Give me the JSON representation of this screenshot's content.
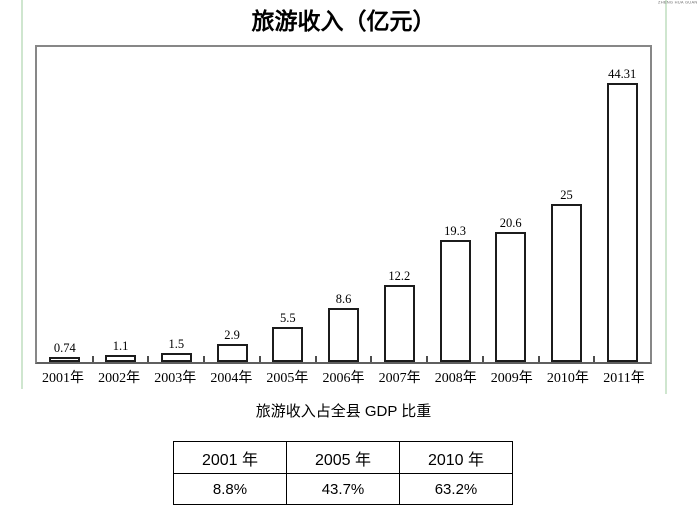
{
  "page": {
    "watermark_top_right": "ZHENG HUA GUAN",
    "background": "#ffffff"
  },
  "colors": {
    "chart_box_border": "#878787",
    "axis_line": "#5f5f5f",
    "bar_border": "#1c1c1c",
    "bar_fill": "#ffffff",
    "text": "#000000",
    "green_guide_line": "#cfe6cf"
  },
  "chart_data": [
    {
      "type": "bar",
      "title": "旅游收入（亿元）",
      "categories": [
        "2001年",
        "2002年",
        "2003年",
        "2004年",
        "2005年",
        "2006年",
        "2007年",
        "2008年",
        "2009年",
        "2010年",
        "2011年"
      ],
      "values": [
        0.74,
        1.1,
        1.5,
        2.9,
        5.5,
        8.6,
        12.2,
        19.3,
        20.6,
        25,
        44.31
      ],
      "data_labels": [
        "0.74",
        "1.1",
        "1.5",
        "2.9",
        "5.5",
        "8.6",
        "12.2",
        "19.3",
        "20.6",
        "25",
        "44.31"
      ],
      "xlabel": "",
      "ylabel": "",
      "ylim": [
        0,
        50
      ],
      "grid": false,
      "legend": "none",
      "y_axis_labels_shown": false,
      "bar_style": {
        "fill": "#ffffff",
        "border": "#1c1c1c"
      }
    },
    {
      "type": "table",
      "title": "旅游收入占全县 GDP 比重",
      "columns": [
        "2001 年",
        "2005 年",
        "2010 年"
      ],
      "rows": [
        [
          "8.8%",
          "43.7%",
          "63.2%"
        ]
      ]
    }
  ]
}
